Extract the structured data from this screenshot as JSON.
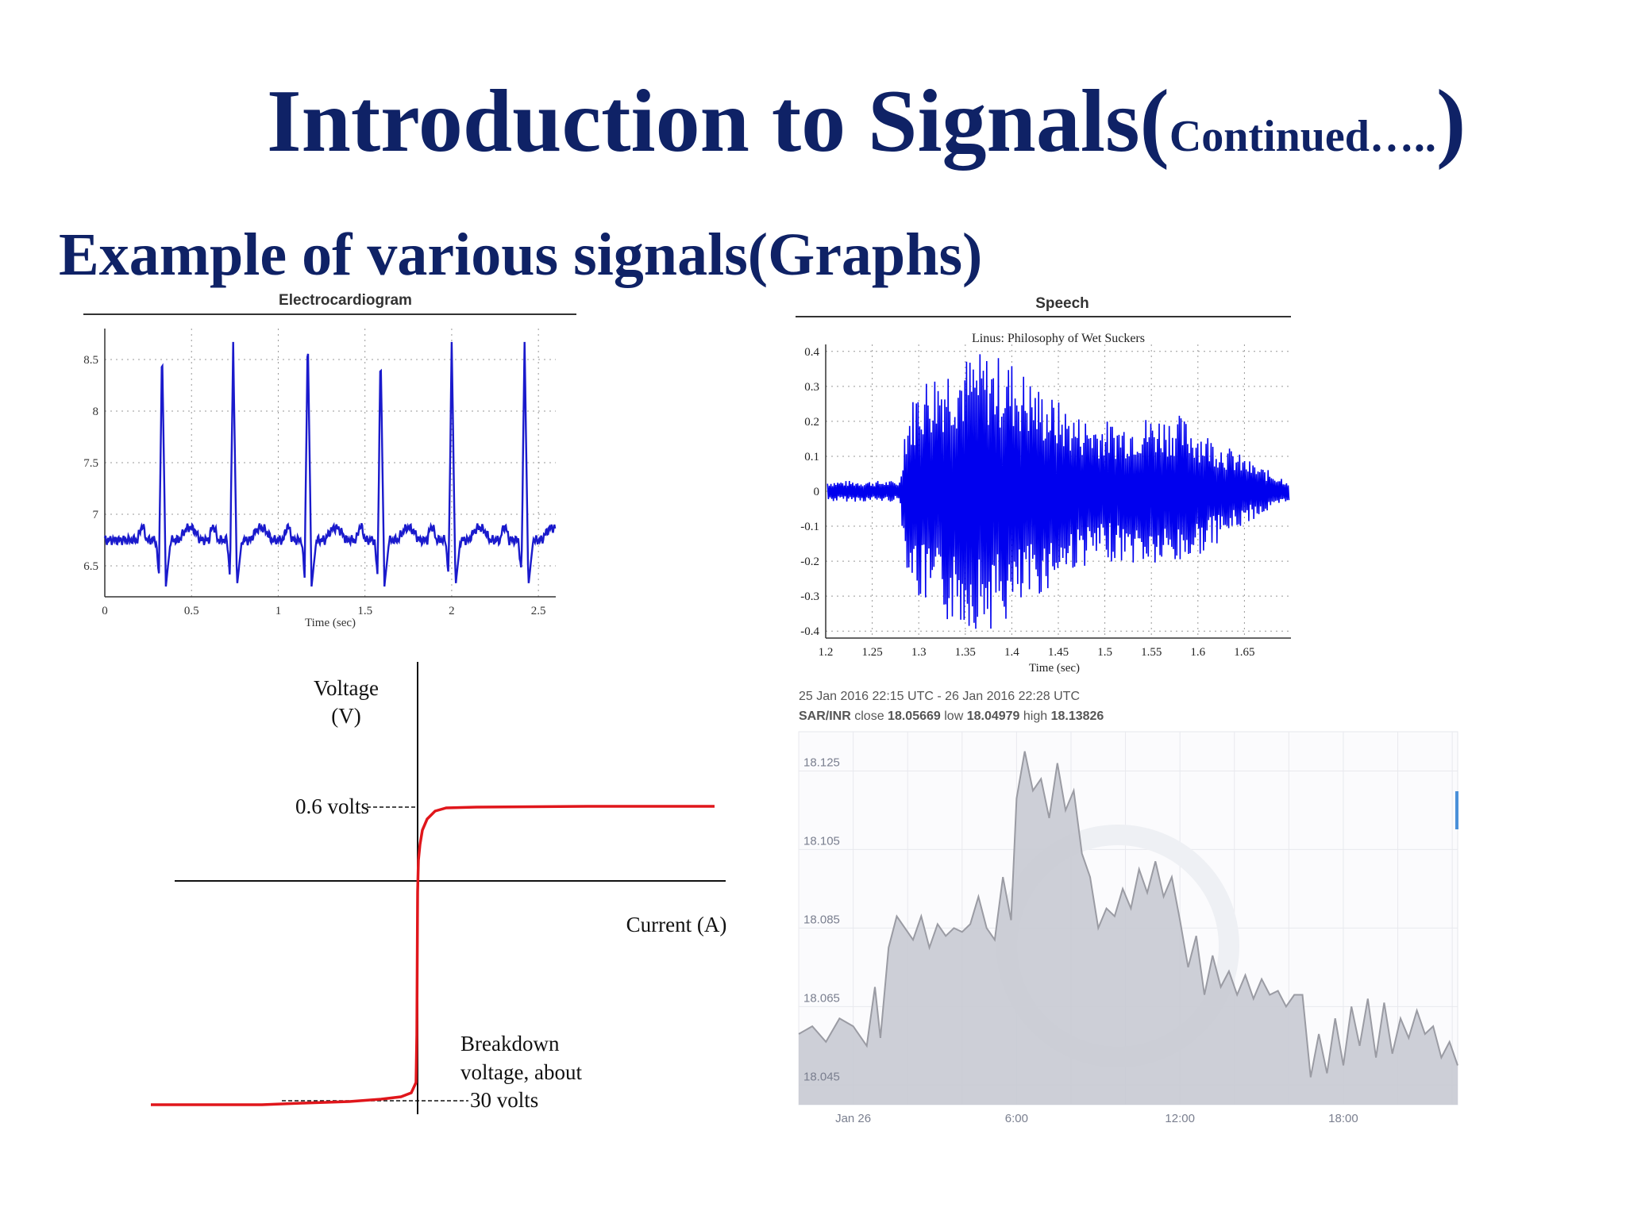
{
  "slide": {
    "title_main": "Introduction to Signals(",
    "title_small": "Continued…..",
    "title_close": ")",
    "subtitle": "Example of various signals(Graphs)"
  },
  "chart_data": [
    {
      "type": "line",
      "title": "Electrocardiogram",
      "xlabel": "Time (sec)",
      "ylabel": "",
      "xlim": [
        0,
        2.6
      ],
      "ylim": [
        6.2,
        8.8
      ],
      "xticks": [
        "0",
        "0.5",
        "1",
        "1.5",
        "2",
        "2.5"
      ],
      "yticks": [
        "6.5",
        "7",
        "7.5",
        "8",
        "8.5"
      ],
      "grid": true,
      "color": "#1a1acc",
      "beats": [
        0.33,
        0.74,
        1.17,
        1.59,
        2.0,
        2.42
      ],
      "beat_peaks": [
        8.65,
        8.67,
        8.78,
        8.6,
        8.67,
        8.67
      ],
      "baseline": 6.75,
      "xrange": [
        0,
        2.6
      ]
    },
    {
      "type": "line",
      "title": "Speech",
      "subtitle": "Linus: Philosophy of Wet Suckers",
      "xlabel": "Time (sec)",
      "ylabel": "",
      "xlim": [
        1.2,
        1.7
      ],
      "ylim": [
        -0.42,
        0.42
      ],
      "xticks": [
        "1.2",
        "1.25",
        "1.3",
        "1.35",
        "1.4",
        "1.45",
        "1.5",
        "1.55",
        "1.6",
        "1.65"
      ],
      "yticks": [
        "0.4",
        "0.3",
        "0.2",
        "0.1",
        "0",
        "-0.1",
        "-0.2",
        "-0.3",
        "-0.4"
      ],
      "grid": true,
      "color": "#0000ee",
      "envelope": [
        {
          "x": 1.2,
          "amp": 0.03
        },
        {
          "x": 1.28,
          "amp": 0.03
        },
        {
          "x": 1.285,
          "amp": 0.2
        },
        {
          "x": 1.3,
          "amp": 0.32
        },
        {
          "x": 1.33,
          "amp": 0.38
        },
        {
          "x": 1.37,
          "amp": 0.4
        },
        {
          "x": 1.4,
          "amp": 0.38
        },
        {
          "x": 1.43,
          "amp": 0.3
        },
        {
          "x": 1.47,
          "amp": 0.22
        },
        {
          "x": 1.51,
          "amp": 0.2
        },
        {
          "x": 1.55,
          "amp": 0.22
        },
        {
          "x": 1.58,
          "amp": 0.22
        },
        {
          "x": 1.62,
          "amp": 0.15
        },
        {
          "x": 1.66,
          "amp": 0.08
        },
        {
          "x": 1.7,
          "amp": 0.03
        }
      ]
    },
    {
      "type": "line",
      "title": "",
      "xlabel": "Current (A)",
      "ylabel": "Voltage\n(V)",
      "ylabel_lines": [
        "Voltage",
        "(V)"
      ],
      "annotations": {
        "forward": "0.6 volts",
        "breakdown_lines": [
          "Breakdown",
          "voltage, about",
          "30 volts"
        ]
      },
      "color": "#e0161b"
    },
    {
      "type": "area",
      "title": "",
      "header_line1": "25 Jan 2016 22:15 UTC - 26 Jan 2016 22:28 UTC",
      "header_pair": "SAR/INR",
      "header_close_label": "close",
      "header_close": "18.05669",
      "header_low_label": "low",
      "header_low": "18.04979",
      "header_high_label": "high",
      "header_high": "18.13826",
      "xlabel": "",
      "ylabel": "",
      "xticks": [
        "Jan 26",
        "6:00",
        "12:00",
        "18:00"
      ],
      "xtick_hours": [
        2.0,
        8.0,
        14.0,
        20.0
      ],
      "xlim_hours": [
        0,
        24.2
      ],
      "yticks": [
        "18.125",
        "18.105",
        "18.085",
        "18.065",
        "18.045"
      ],
      "ylim": [
        18.04,
        18.135
      ],
      "grid": true,
      "color": "#9a9ba3",
      "fill": "#c8cad3",
      "x_hours": [
        0,
        0.5,
        1,
        1.5,
        2,
        2.5,
        2.8,
        3.0,
        3.3,
        3.6,
        3.9,
        4.2,
        4.5,
        4.8,
        5.1,
        5.4,
        5.7,
        6.0,
        6.3,
        6.6,
        6.9,
        7.2,
        7.5,
        7.8,
        8.0,
        8.3,
        8.6,
        8.9,
        9.2,
        9.5,
        9.8,
        10.1,
        10.4,
        10.7,
        11.0,
        11.3,
        11.6,
        11.9,
        12.2,
        12.5,
        12.8,
        13.1,
        13.4,
        13.7,
        14.0,
        14.3,
        14.6,
        14.9,
        15.2,
        15.5,
        15.8,
        16.1,
        16.4,
        16.7,
        17.0,
        17.3,
        17.6,
        17.9,
        18.2,
        18.5,
        18.8,
        19.1,
        19.4,
        19.7,
        20.0,
        20.3,
        20.6,
        20.9,
        21.2,
        21.5,
        21.8,
        22.1,
        22.4,
        22.7,
        23.0,
        23.3,
        23.6,
        23.9,
        24.2
      ],
      "values": [
        18.058,
        18.06,
        18.056,
        18.062,
        18.06,
        18.055,
        18.07,
        18.057,
        18.08,
        18.088,
        18.085,
        18.082,
        18.088,
        18.08,
        18.086,
        18.083,
        18.085,
        18.084,
        18.086,
        18.093,
        18.085,
        18.082,
        18.098,
        18.087,
        18.118,
        18.13,
        18.12,
        18.123,
        18.113,
        18.127,
        18.115,
        18.12,
        18.104,
        18.098,
        18.085,
        18.09,
        18.088,
        18.095,
        18.09,
        18.1,
        18.094,
        18.102,
        18.093,
        18.098,
        18.087,
        18.075,
        18.083,
        18.068,
        18.078,
        18.07,
        18.074,
        18.068,
        18.073,
        18.067,
        18.072,
        18.068,
        18.069,
        18.065,
        18.068,
        18.068,
        18.047,
        18.058,
        18.048,
        18.062,
        18.05,
        18.065,
        18.055,
        18.067,
        18.052,
        18.066,
        18.053,
        18.062,
        18.057,
        18.064,
        18.058,
        18.06,
        18.052,
        18.056,
        18.05
      ]
    }
  ]
}
